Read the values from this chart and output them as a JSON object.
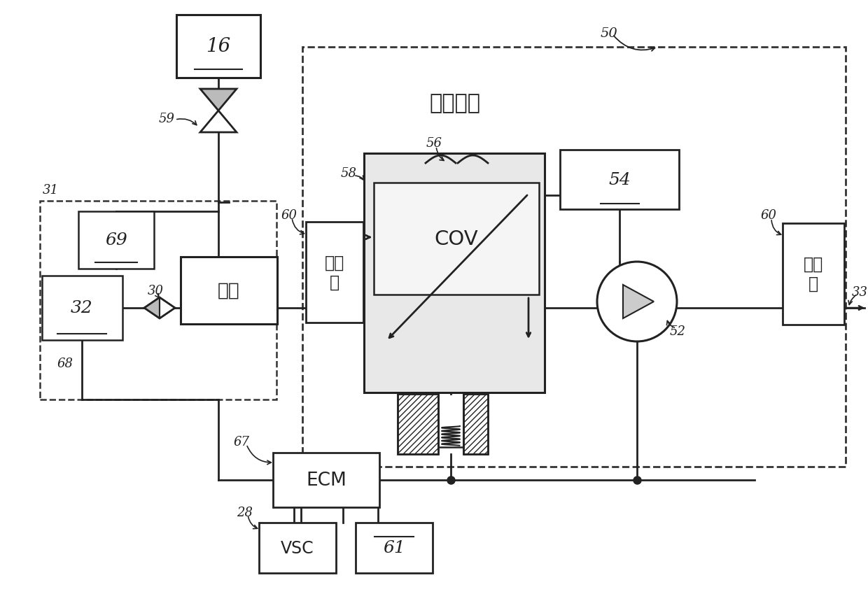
{
  "bg": "#ffffff",
  "lc": "#222222",
  "label_16": "16",
  "label_69": "69",
  "label_32": "32",
  "label_carbon": "碳罐",
  "label_filter": "过滤\n器",
  "label_cov": "COV",
  "label_54": "54",
  "label_ecm": "ECM",
  "label_vsc": "VSC",
  "label_61": "61",
  "label_ref": "参照孔隙",
  "n59": "59",
  "n31": "31",
  "n30": "30",
  "n68": "68",
  "n60a": "60",
  "n60b": "60",
  "n56": "56",
  "n58": "58",
  "n52": "52",
  "n50": "50",
  "n67": "67",
  "n28": "28",
  "n33": "33"
}
